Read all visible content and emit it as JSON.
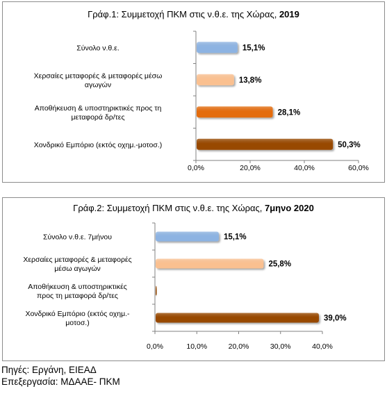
{
  "colors": {
    "blue": "#8db3e2",
    "peach": "#fac090",
    "orange": "#e46c0a",
    "brown": "#984806",
    "axis": "#808080"
  },
  "chart_data": [
    {
      "type": "bar",
      "orientation": "horizontal",
      "title_main": "Γράφ.1: Συμμετοχή ΠΚΜ στις ν.θ.ε. της Χώρας, ",
      "title_bold": "2019",
      "categories": [
        [
          "Σύνολο ν.θ.ε."
        ],
        [
          "Χερσαίες μεταφορές & μεταφορές μέσω",
          "αγωγών"
        ],
        [
          "Αποθήκευση & υποστηρικτικές προς τη",
          "μεταφορά δρ/τες"
        ],
        [
          "Χονδρικό Εμπόριο (εκτός οχημ.-μοτοσ.)"
        ]
      ],
      "values": [
        15.1,
        13.8,
        28.1,
        50.3
      ],
      "value_labels": [
        "15,1%",
        "13,8%",
        "28,1%",
        "50,3%"
      ],
      "bar_colors": [
        "blue",
        "peach",
        "orange",
        "brown"
      ],
      "xlim": [
        0,
        60
      ],
      "ticks": [
        0,
        20,
        40,
        60
      ],
      "tick_labels": [
        "0,0%",
        "20,0%",
        "40,0%",
        "60,0%"
      ],
      "grid": false,
      "legend": "none"
    },
    {
      "type": "bar",
      "orientation": "horizontal",
      "title_main": "Γράφ.2: Συμμετοχή ΠΚΜ στις ν.θ.ε. της Χώρας, ",
      "title_bold": "7μηνο 2020",
      "categories": [
        [
          "Σύνολο ν.θ.ε. 7μήνου"
        ],
        [
          "Χερσαίες μεταφορές & μεταφορές",
          "μέσω αγωγών"
        ],
        [
          "Αποθήκευση & υποστηρικτικές",
          "προς τη μεταφορά δρ/τες"
        ],
        [
          "Χονδρικό Εμπόριο (εκτός οχημ.-",
          "μοτοσ.)"
        ]
      ],
      "values": [
        15.1,
        25.8,
        0.2,
        39.0
      ],
      "value_labels": [
        "15,1%",
        "25,8%",
        "",
        "39,0%"
      ],
      "bar_colors": [
        "blue",
        "peach",
        "brown",
        "brown"
      ],
      "xlim": [
        0,
        40
      ],
      "ticks": [
        0,
        10,
        20,
        30,
        40
      ],
      "tick_labels": [
        "0,0%",
        "10,0%",
        "20,0%",
        "30,0%",
        "40,0%"
      ],
      "grid": false,
      "legend": "none"
    }
  ],
  "sources": {
    "line1": "Πηγές: Εργάνη, ΕΙΕΑΔ",
    "line2": "Επεξεργασία: ΜΔΑΑΕ- ΠΚΜ"
  }
}
